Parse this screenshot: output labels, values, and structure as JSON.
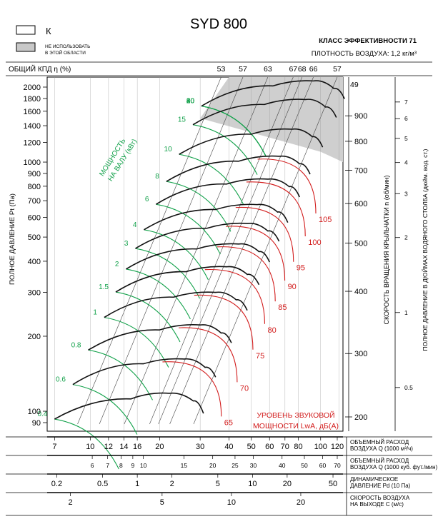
{
  "header": {
    "title": "SYD 800",
    "legend_k_label": "К",
    "legend_gray_line1": "НЕ ИСПОЛЬЗОВАТЬ",
    "legend_gray_line2": "В ЭТОЙ ОБЛАСТИ",
    "efficiency_class": "КЛАСС ЭФФЕКТИВНОСТИ 71",
    "air_density": "ПЛОТНОСТЬ ВОЗДУХА: 1,2 кг/м³"
  },
  "chart_data": {
    "type": "line",
    "title": "SYD 800",
    "ylabel": "ПОЛНОЕ ДАВЛЕНИЕ Pt (Па)",
    "ylabel_right_rpm": "СКОРОСТЬ ВРАЩЕНИЯ КРЫЛЬЧАТКИ  n (об/мин)",
    "ylabel_right_inch": "ПОЛНОЕ ДАВЛЕНИЕ В ДЮЙМАХ ВОДЯНОГО СТОЛБА (дюйм. вод. ст.)",
    "y_scale": "log",
    "ylim": [
      90,
      2000
    ],
    "x_scale": "log",
    "xlim": [
      6.5,
      125
    ],
    "pressure_ticks": [
      {
        "label": "2000",
        "v": 2000
      },
      {
        "label": "1800",
        "v": 1800
      },
      {
        "label": "1600",
        "v": 1600
      },
      {
        "label": "1400",
        "v": 1400
      },
      {
        "label": "1200",
        "v": 1200
      },
      {
        "label": "1000",
        "v": 1000
      },
      {
        "label": "900",
        "v": 900
      },
      {
        "label": "800",
        "v": 800
      },
      {
        "label": "700",
        "v": 700
      },
      {
        "label": "600",
        "v": 600
      },
      {
        "label": "500",
        "v": 500
      },
      {
        "label": "400",
        "v": 400
      },
      {
        "label": "300",
        "v": 300
      },
      {
        "label": "200",
        "v": 200
      },
      {
        "label": "100",
        "v": 100
      },
      {
        "label": "90",
        "v": 90
      }
    ],
    "rpm_ticks": [
      {
        "label": "900",
        "v": 900
      },
      {
        "label": "800",
        "v": 800
      },
      {
        "label": "700",
        "v": 700
      },
      {
        "label": "600",
        "v": 600
      },
      {
        "label": "500",
        "v": 500
      },
      {
        "label": "400",
        "v": 400
      },
      {
        "label": "300",
        "v": 300
      },
      {
        "label": "200",
        "v": 200
      }
    ],
    "inch_ticks": [
      {
        "label": "7",
        "v": 7
      },
      {
        "label": "6",
        "v": 6
      },
      {
        "label": "5",
        "v": 5
      },
      {
        "label": "4",
        "v": 4
      },
      {
        "label": "3",
        "v": 3
      },
      {
        "label": "2",
        "v": 2
      },
      {
        "label": "1",
        "v": 1
      },
      {
        "label": "0.5",
        "v": 0.5
      }
    ],
    "efficiency_header_label": "ОБЩИЙ КПД η (%)",
    "efficiency_ticks": [
      {
        "label": "53",
        "q": 37
      },
      {
        "label": "57",
        "q": 46
      },
      {
        "label": "63",
        "q": 59
      },
      {
        "label": "67",
        "q": 76
      },
      {
        "label": "68",
        "q": 83
      },
      {
        "label": "66",
        "q": 93
      },
      {
        "label": "57",
        "q": 118
      }
    ],
    "efficiency_side_label": "49",
    "flow_axis_label_line1": "ОБЪЕМНЫЙ РАСХОД",
    "flow_axis_label_line2": "ВОЗДУХА Q (1000 м³/ч)",
    "flow_ticks": [
      {
        "label": "7",
        "v": 7
      },
      {
        "label": "10",
        "v": 10
      },
      {
        "label": "12",
        "v": 12
      },
      {
        "label": "14",
        "v": 14
      },
      {
        "label": "16",
        "v": 16
      },
      {
        "label": "20",
        "v": 20
      },
      {
        "label": "30",
        "v": 30
      },
      {
        "label": "40",
        "v": 40
      },
      {
        "label": "50",
        "v": 50
      },
      {
        "label": "60",
        "v": 60
      },
      {
        "label": "70",
        "v": 70
      },
      {
        "label": "80",
        "v": 80
      },
      {
        "label": "100",
        "v": 100
      },
      {
        "label": "120",
        "v": 120
      }
    ],
    "cfm_axis_label_line1": "ОБЪЕМНЫЙ РАСХОД",
    "cfm_axis_label_line2": "ВОЗДУХА Q (1000 куб. фут./мин)",
    "cfm_ticks": [
      {
        "label": "6",
        "v": 6
      },
      {
        "label": "7",
        "v": 7
      },
      {
        "label": "8",
        "v": 8
      },
      {
        "label": "9",
        "v": 9
      },
      {
        "label": "10",
        "v": 10
      },
      {
        "label": "15",
        "v": 15
      },
      {
        "label": "20",
        "v": 20
      },
      {
        "label": "25",
        "v": 25
      },
      {
        "label": "30",
        "v": 30
      },
      {
        "label": "40",
        "v": 40
      },
      {
        "label": "50",
        "v": 50
      },
      {
        "label": "60",
        "v": 60
      },
      {
        "label": "70",
        "v": 70
      }
    ],
    "pd_axis_label_line1": "ДИНАМИЧЕСКОЕ",
    "pd_axis_label_line2": "ДАВЛЕНИЕ Pd (10 Па)",
    "pd_ticks": [
      {
        "label": "0.2",
        "v": 0.2
      },
      {
        "label": "0.5",
        "v": 0.5
      },
      {
        "label": "1",
        "v": 1
      },
      {
        "label": "2",
        "v": 2
      },
      {
        "label": "5",
        "v": 5
      },
      {
        "label": "10",
        "v": 10
      },
      {
        "label": "20",
        "v": 20
      },
      {
        "label": "50",
        "v": 50
      }
    ],
    "velocity_axis_label_line1": "СКОРОСТЬ ВОЗДУХА",
    "velocity_axis_label_line2": "НА ВЫХОДЕ С (м/с)",
    "velocity_ticks": [
      {
        "label": "2",
        "v": 2
      },
      {
        "label": "5",
        "v": 5
      },
      {
        "label": "10",
        "v": 10
      },
      {
        "label": "20",
        "v": 20
      }
    ],
    "power_axis_label_line1": "МОЩНОСТЬ",
    "power_axis_label_line2": "НА ВАЛУ (кВт)",
    "power_labels": [
      "0.4",
      "0.6",
      "0.8",
      "1",
      "1.5",
      "2",
      "3",
      "4",
      "6",
      "8",
      "10",
      "15",
      "20",
      "30",
      "40",
      "60",
      "80"
    ],
    "sound_label_line1": "УРОВЕНЬ ЗВУКОВОЙ",
    "sound_label_line2": "МОЩНОСТИ LwA, дБ(А)",
    "sound_labels": [
      "65",
      "70",
      "75",
      "80",
      "85",
      "90",
      "95",
      "100",
      "105"
    ],
    "series": [
      {
        "rpm": 200,
        "points": [
          [
            7,
            93
          ],
          [
            15,
            112
          ],
          [
            22,
            118
          ],
          [
            28,
            110
          ],
          [
            31,
            98
          ]
        ]
      },
      {
        "rpm": 235,
        "points": [
          [
            8.4,
            128
          ],
          [
            17,
            155
          ],
          [
            25.5,
            162
          ],
          [
            31.5,
            150
          ],
          [
            35,
            137
          ]
        ]
      },
      {
        "rpm": 275,
        "points": [
          [
            9.8,
            176
          ],
          [
            20,
            212
          ],
          [
            30,
            222
          ],
          [
            37,
            206
          ],
          [
            41,
            188
          ]
        ]
      },
      {
        "rpm": 320,
        "points": [
          [
            11.5,
            238
          ],
          [
            23,
            287
          ],
          [
            35,
            300
          ],
          [
            43,
            280
          ],
          [
            48,
            254
          ]
        ]
      },
      {
        "rpm": 360,
        "points": [
          [
            12.9,
            301
          ],
          [
            26,
            363
          ],
          [
            39,
            380
          ],
          [
            48,
            354
          ],
          [
            54,
            322
          ]
        ]
      },
      {
        "rpm": 400,
        "points": [
          [
            14.3,
            372
          ],
          [
            29,
            448
          ],
          [
            44,
            469
          ],
          [
            54,
            437
          ],
          [
            60,
            397
          ]
        ]
      },
      {
        "rpm": 440,
        "points": [
          [
            15.7,
            450
          ],
          [
            32,
            542
          ],
          [
            48,
            567
          ],
          [
            59,
            529
          ],
          [
            66,
            481
          ]
        ]
      },
      {
        "rpm": 480,
        "points": [
          [
            17.1,
            535
          ],
          [
            35,
            645
          ],
          [
            53,
            675
          ],
          [
            65,
            630
          ],
          [
            72,
            572
          ]
        ]
      },
      {
        "rpm": 540,
        "points": [
          [
            19.3,
            677
          ],
          [
            39,
            816
          ],
          [
            59,
            854
          ],
          [
            73,
            797
          ],
          [
            81,
            724
          ]
        ]
      },
      {
        "rpm": 600,
        "points": [
          [
            21.4,
            836
          ],
          [
            44,
            1008
          ],
          [
            66,
            1055
          ],
          [
            81,
            984
          ],
          [
            90,
            894
          ]
        ]
      },
      {
        "rpm": 680,
        "points": [
          [
            24.3,
            1074
          ],
          [
            50,
            1294
          ],
          [
            75,
            1355
          ],
          [
            92,
            1264
          ],
          [
            102,
            1148
          ]
        ]
      },
      {
        "rpm": 780,
        "points": [
          [
            27.9,
            1413
          ],
          [
            57,
            1703
          ],
          [
            86,
            1783
          ],
          [
            105,
            1663
          ],
          [
            117,
            1511
          ]
        ]
      },
      {
        "rpm": 850,
        "points": [
          [
            30.4,
            1678
          ],
          [
            62,
            2022
          ],
          [
            93,
            2117
          ],
          [
            114,
            1975
          ],
          [
            127,
            1794
          ]
        ]
      }
    ]
  }
}
